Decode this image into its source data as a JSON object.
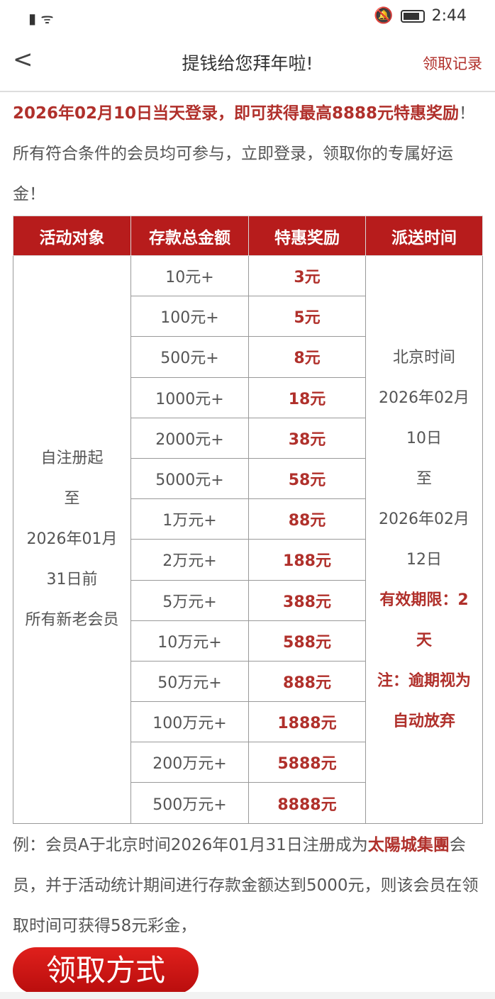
{
  "status": {
    "time": "2:44"
  },
  "header": {
    "title": "提钱给您拜年啦!",
    "records": "领取记录"
  },
  "intro": {
    "highlight": "2026年02月10日当天登录，即可获得最高8888元特惠奖励",
    "text": "！所有符合条件的会员均可参与，立即登录，领取你的专属好运金！"
  },
  "table": {
    "headers": [
      "活动对象",
      "存款总金额",
      "特惠奖励",
      "派送时间"
    ],
    "target_lines": [
      "自注册起",
      "至",
      "2026年01月",
      "31日前",
      "所有新老会员"
    ],
    "rows": [
      [
        "10元+",
        "3元"
      ],
      [
        "100元+",
        "5元"
      ],
      [
        "500元+",
        "8元"
      ],
      [
        "1000元+",
        "18元"
      ],
      [
        "2000元+",
        "38元"
      ],
      [
        "5000元+",
        "58元"
      ],
      [
        "1万元+",
        "88元"
      ],
      [
        "2万元+",
        "188元"
      ],
      [
        "5万元+",
        "388元"
      ],
      [
        "10万元+",
        "588元"
      ],
      [
        "50万元+",
        "888元"
      ],
      [
        "100万元+",
        "1888元"
      ],
      [
        "200万元+",
        "5888元"
      ],
      [
        "500万元+",
        "8888元"
      ]
    ],
    "time_lines": [
      "北京时间",
      "2026年02月",
      "10日",
      "至",
      "2026年02月",
      "12日"
    ],
    "time_red_lines": [
      "有效期限：2",
      "天",
      "注：逾期视为",
      "自动放弃"
    ]
  },
  "example": {
    "a": "例：会员A于北京时间2026年01月31日注册成为",
    "brand": "太陽城集團",
    "b": "会员，并于活动统计期间进行存款金额达到5000元，则该会员在领取时间可获得58元彩金，"
  },
  "button": {
    "label": "领取方式"
  }
}
